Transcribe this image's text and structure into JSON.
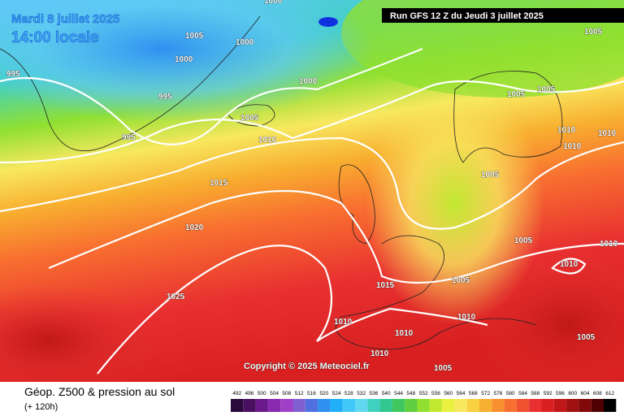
{
  "header": {
    "date": "Mardi 8 juillet 2025",
    "time": "14:00 locale",
    "run": "Run GFS 12 Z du Jeudi 3 juillet 2025"
  },
  "map": {
    "copyright": "Copyright © 2025 Meteociel.fr",
    "isobar_labels": [
      1000,
      995,
      1005,
      1000,
      1000,
      995,
      1000,
      995,
      1005,
      1010,
      1015,
      1020,
      1025,
      1015,
      1010,
      1010,
      1010,
      1005,
      1010,
      1005,
      1005,
      1005,
      1005,
      1005,
      1010,
      1010,
      1010,
      1010,
      1010,
      1005,
      1005
    ]
  },
  "legend": {
    "title": "Géop. Z500 & pression au sol",
    "lead": "(+ 120h)",
    "values": [
      492,
      496,
      500,
      504,
      508,
      512,
      516,
      520,
      524,
      528,
      532,
      536,
      540,
      544,
      548,
      552,
      556,
      560,
      564,
      568,
      572,
      576,
      580,
      584,
      588,
      592,
      596,
      600,
      604,
      608,
      612
    ],
    "colors": [
      "#2a0a3a",
      "#4a1060",
      "#6a1a8a",
      "#8a2ab0",
      "#a040c8",
      "#8060d0",
      "#5070e0",
      "#3090f0",
      "#20b0f8",
      "#40c8f8",
      "#60d8f0",
      "#40d0c0",
      "#30c890",
      "#40c860",
      "#60d040",
      "#90e030",
      "#c0e830",
      "#e8f040",
      "#f8e860",
      "#f8d040",
      "#f8b030",
      "#f89030",
      "#f87030",
      "#f05030",
      "#e83030",
      "#d82020",
      "#c01818",
      "#a01010",
      "#800808",
      "#500000",
      "#000000"
    ]
  }
}
